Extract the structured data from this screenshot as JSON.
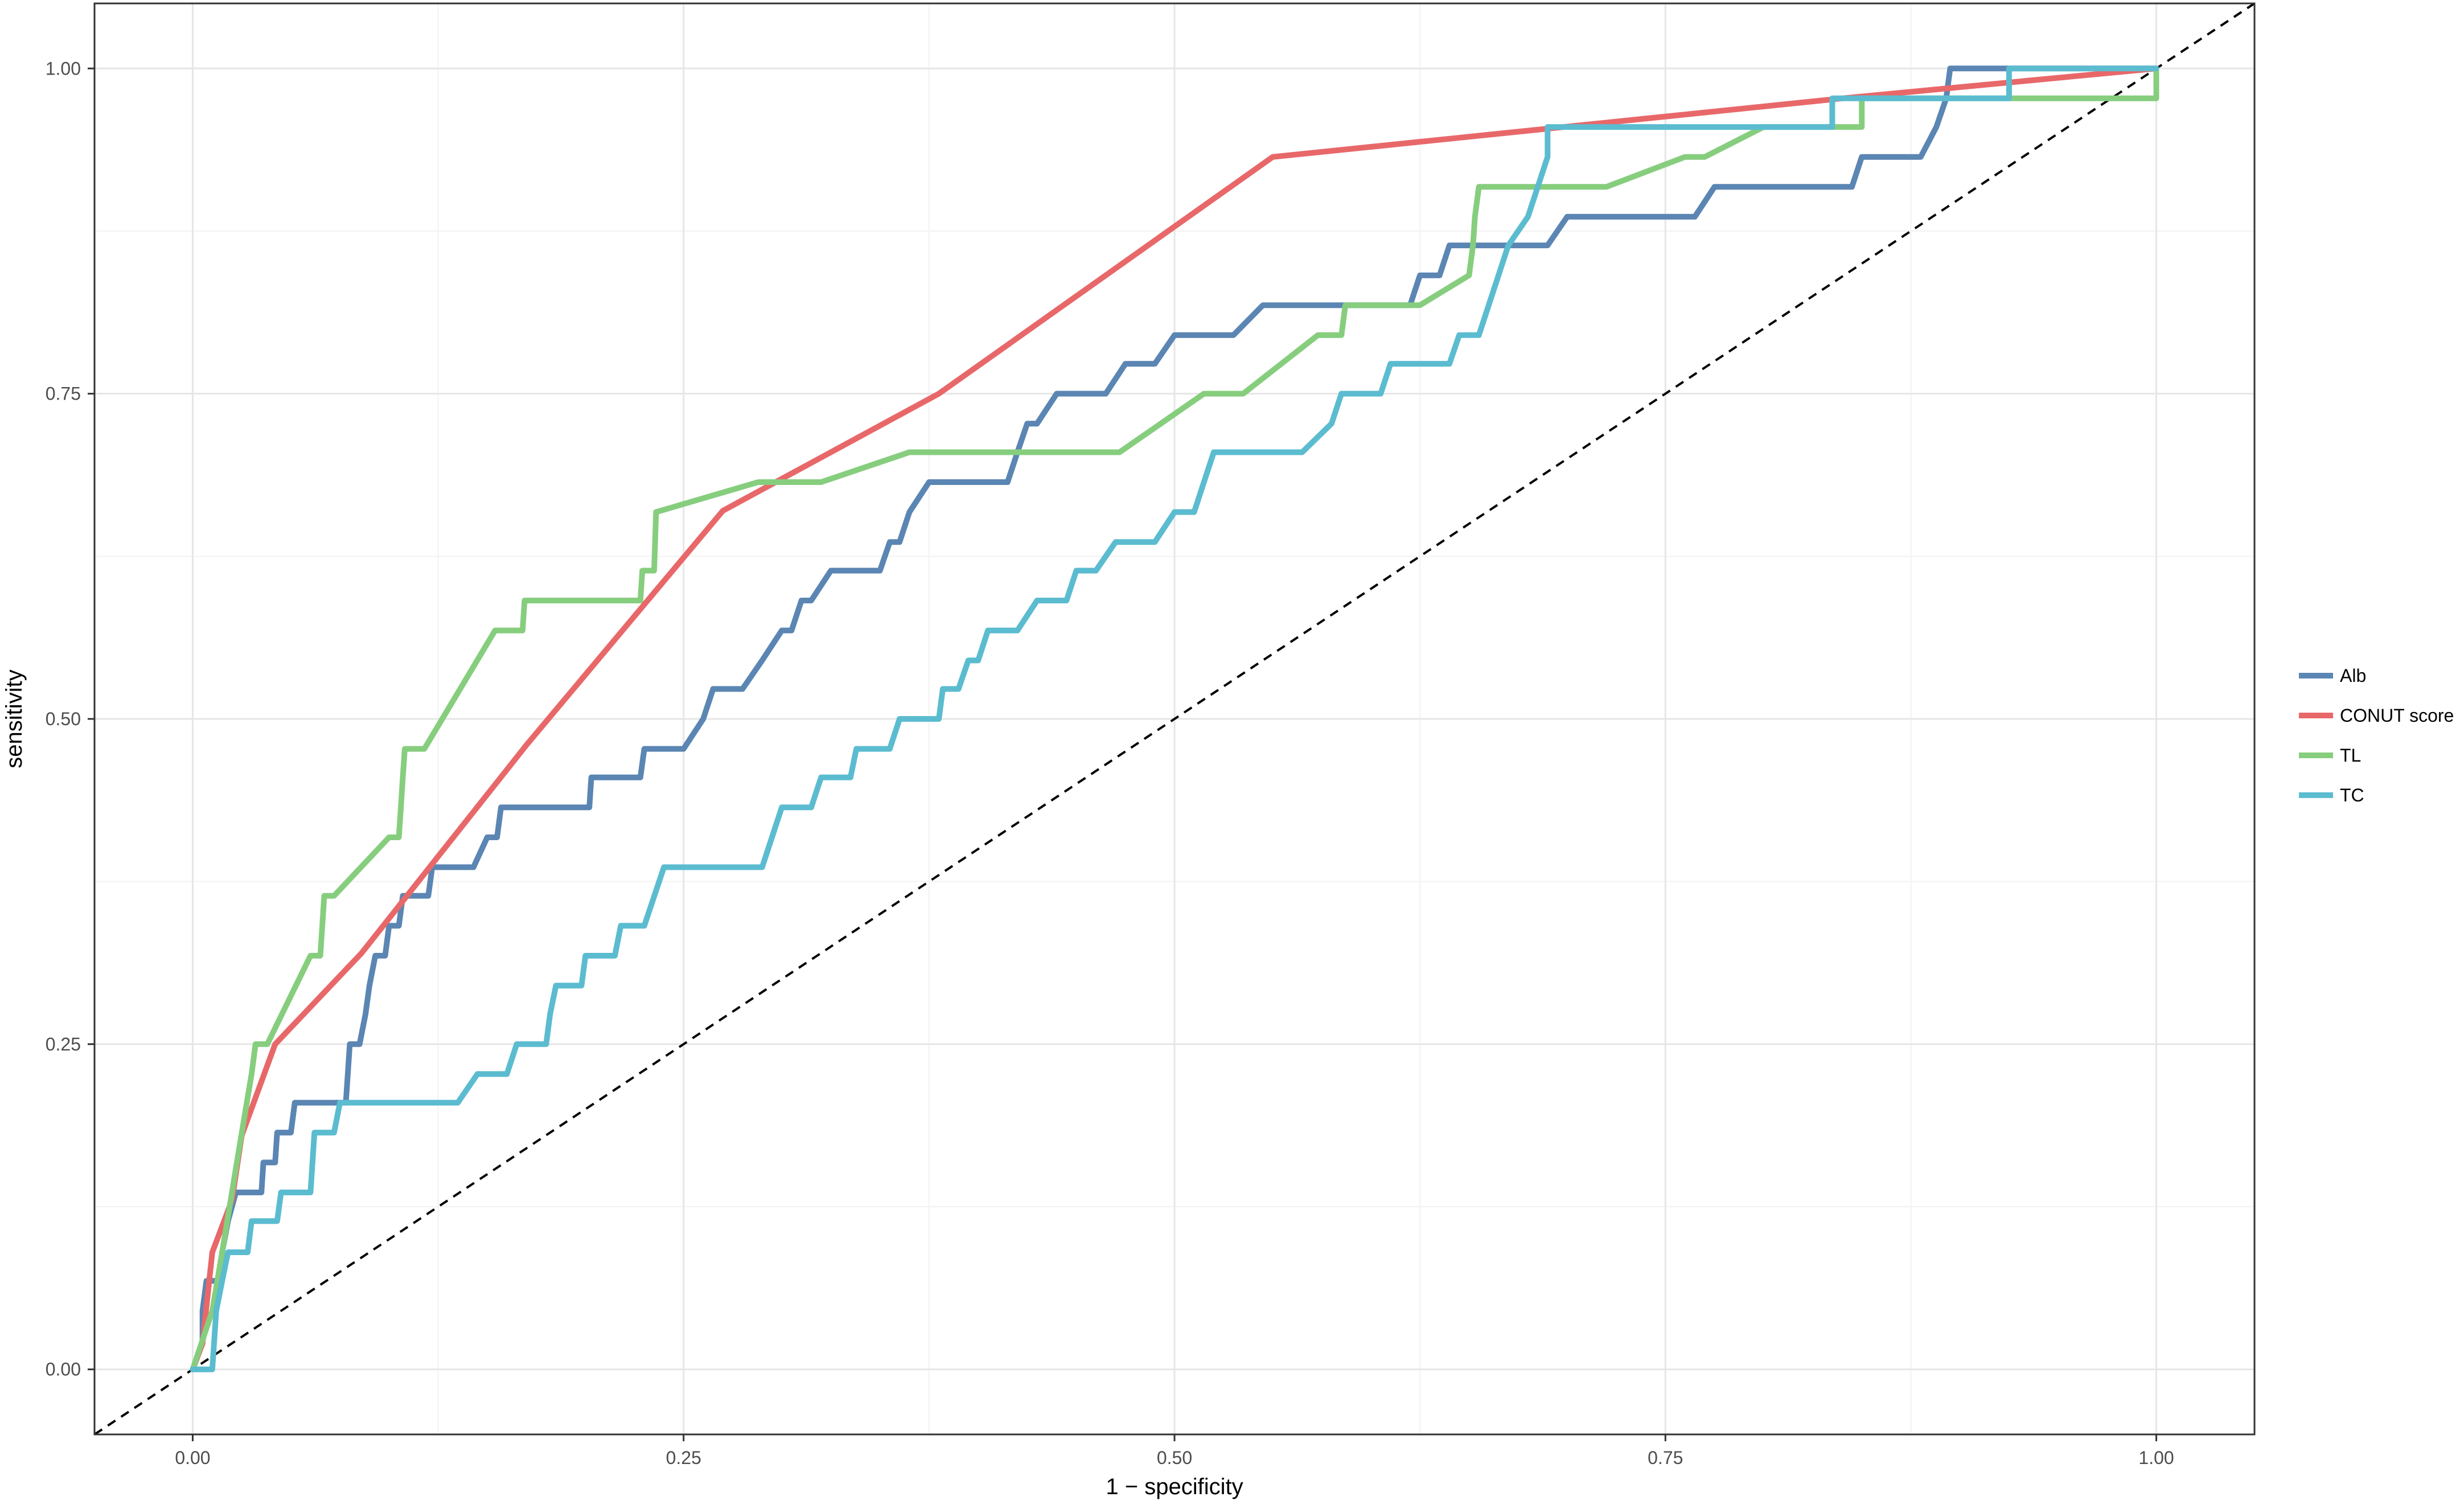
{
  "chart_data": {
    "type": "line",
    "xlabel": "1 − specificity",
    "ylabel": "sensitivity",
    "xlim": [
      -0.05,
      1.05
    ],
    "ylim": [
      -0.05,
      1.05
    ],
    "x_ticks": [
      0,
      0.25,
      0.5,
      0.75,
      1.0
    ],
    "x_tick_labels": [
      "0.00",
      "0.25",
      "0.50",
      "0.75",
      "1.00"
    ],
    "y_ticks": [
      0,
      0.25,
      0.5,
      0.75,
      1.0
    ],
    "y_tick_labels": [
      "0.00",
      "0.25",
      "0.50",
      "0.75",
      "1.00"
    ],
    "grid": true,
    "reference_line": {
      "style": "dashed",
      "from": [
        -0.05,
        -0.05
      ],
      "to": [
        1.05,
        1.05
      ]
    },
    "legend_position": "right",
    "series": [
      {
        "name": "Alb",
        "color": "#5b86b3",
        "points": [
          [
            0,
            0
          ],
          [
            0.005,
            0.02
          ],
          [
            0.005,
            0.045
          ],
          [
            0.007,
            0.068
          ],
          [
            0.015,
            0.068
          ],
          [
            0.015,
            0.09
          ],
          [
            0.018,
            0.114
          ],
          [
            0.022,
            0.136
          ],
          [
            0.035,
            0.136
          ],
          [
            0.036,
            0.159
          ],
          [
            0.042,
            0.159
          ],
          [
            0.043,
            0.182
          ],
          [
            0.05,
            0.182
          ],
          [
            0.052,
            0.205
          ],
          [
            0.078,
            0.205
          ],
          [
            0.079,
            0.227
          ],
          [
            0.08,
            0.25
          ],
          [
            0.085,
            0.25
          ],
          [
            0.088,
            0.273
          ],
          [
            0.09,
            0.295
          ],
          [
            0.093,
            0.318
          ],
          [
            0.098,
            0.318
          ],
          [
            0.1,
            0.341
          ],
          [
            0.105,
            0.341
          ],
          [
            0.107,
            0.364
          ],
          [
            0.12,
            0.364
          ],
          [
            0.122,
            0.386
          ],
          [
            0.143,
            0.386
          ],
          [
            0.15,
            0.409
          ],
          [
            0.155,
            0.409
          ],
          [
            0.157,
            0.432
          ],
          [
            0.202,
            0.432
          ],
          [
            0.203,
            0.455
          ],
          [
            0.228,
            0.455
          ],
          [
            0.23,
            0.477
          ],
          [
            0.25,
            0.477
          ],
          [
            0.26,
            0.5
          ],
          [
            0.265,
            0.523
          ],
          [
            0.28,
            0.523
          ],
          [
            0.29,
            0.545
          ],
          [
            0.3,
            0.568
          ],
          [
            0.305,
            0.568
          ],
          [
            0.31,
            0.591
          ],
          [
            0.315,
            0.591
          ],
          [
            0.325,
            0.614
          ],
          [
            0.35,
            0.614
          ],
          [
            0.355,
            0.636
          ],
          [
            0.36,
            0.636
          ],
          [
            0.365,
            0.659
          ],
          [
            0.375,
            0.682
          ],
          [
            0.415,
            0.682
          ],
          [
            0.42,
            0.705
          ],
          [
            0.425,
            0.727
          ],
          [
            0.43,
            0.727
          ],
          [
            0.44,
            0.75
          ],
          [
            0.465,
            0.75
          ],
          [
            0.475,
            0.773
          ],
          [
            0.49,
            0.773
          ],
          [
            0.5,
            0.795
          ],
          [
            0.53,
            0.795
          ],
          [
            0.545,
            0.818
          ],
          [
            0.62,
            0.818
          ],
          [
            0.625,
            0.841
          ],
          [
            0.635,
            0.841
          ],
          [
            0.64,
            0.864
          ],
          [
            0.69,
            0.864
          ],
          [
            0.7,
            0.886
          ],
          [
            0.765,
            0.886
          ],
          [
            0.775,
            0.909
          ],
          [
            0.845,
            0.909
          ],
          [
            0.85,
            0.932
          ],
          [
            0.88,
            0.932
          ],
          [
            0.888,
            0.955
          ],
          [
            0.893,
            0.977
          ],
          [
            0.895,
            1.0
          ],
          [
            1.0,
            1.0
          ]
        ]
      },
      {
        "name": "CONUT score",
        "color": "#e8686a",
        "points": [
          [
            0,
            0
          ],
          [
            0.005,
            0.02
          ],
          [
            0.01,
            0.09
          ],
          [
            0.02,
            0.13
          ],
          [
            0.025,
            0.18
          ],
          [
            0.042,
            0.25
          ],
          [
            0.086,
            0.32
          ],
          [
            0.17,
            0.48
          ],
          [
            0.27,
            0.66
          ],
          [
            0.38,
            0.75
          ],
          [
            0.55,
            0.932
          ],
          [
            0.84,
            0.977
          ],
          [
            1.0,
            1.0
          ]
        ]
      },
      {
        "name": "TL",
        "color": "#86ce7e",
        "points": [
          [
            0,
            0
          ],
          [
            0.01,
            0.045
          ],
          [
            0.015,
            0.09
          ],
          [
            0.02,
            0.136
          ],
          [
            0.025,
            0.182
          ],
          [
            0.03,
            0.227
          ],
          [
            0.032,
            0.25
          ],
          [
            0.038,
            0.25
          ],
          [
            0.06,
            0.318
          ],
          [
            0.065,
            0.318
          ],
          [
            0.066,
            0.341
          ],
          [
            0.067,
            0.364
          ],
          [
            0.072,
            0.364
          ],
          [
            0.1,
            0.409
          ],
          [
            0.105,
            0.409
          ],
          [
            0.106,
            0.432
          ],
          [
            0.107,
            0.455
          ],
          [
            0.108,
            0.477
          ],
          [
            0.118,
            0.477
          ],
          [
            0.154,
            0.568
          ],
          [
            0.168,
            0.568
          ],
          [
            0.169,
            0.591
          ],
          [
            0.228,
            0.591
          ],
          [
            0.229,
            0.614
          ],
          [
            0.235,
            0.614
          ],
          [
            0.236,
            0.659
          ],
          [
            0.288,
            0.682
          ],
          [
            0.32,
            0.682
          ],
          [
            0.365,
            0.705
          ],
          [
            0.472,
            0.705
          ],
          [
            0.515,
            0.75
          ],
          [
            0.535,
            0.75
          ],
          [
            0.573,
            0.795
          ],
          [
            0.585,
            0.795
          ],
          [
            0.587,
            0.818
          ],
          [
            0.625,
            0.818
          ],
          [
            0.65,
            0.841
          ],
          [
            0.652,
            0.864
          ],
          [
            0.653,
            0.886
          ],
          [
            0.655,
            0.909
          ],
          [
            0.72,
            0.909
          ],
          [
            0.76,
            0.932
          ],
          [
            0.77,
            0.932
          ],
          [
            0.8,
            0.955
          ],
          [
            0.85,
            0.955
          ],
          [
            0.85,
            0.977
          ],
          [
            1.0,
            0.977
          ],
          [
            1.0,
            1.0
          ]
        ]
      },
      {
        "name": "TC",
        "color": "#5bbcd0",
        "points": [
          [
            0,
            0
          ],
          [
            0.01,
            0
          ],
          [
            0.012,
            0.045
          ],
          [
            0.015,
            0.068
          ],
          [
            0.018,
            0.09
          ],
          [
            0.028,
            0.09
          ],
          [
            0.03,
            0.114
          ],
          [
            0.043,
            0.114
          ],
          [
            0.045,
            0.136
          ],
          [
            0.06,
            0.136
          ],
          [
            0.062,
            0.182
          ],
          [
            0.072,
            0.182
          ],
          [
            0.075,
            0.205
          ],
          [
            0.135,
            0.205
          ],
          [
            0.145,
            0.227
          ],
          [
            0.16,
            0.227
          ],
          [
            0.165,
            0.25
          ],
          [
            0.18,
            0.25
          ],
          [
            0.182,
            0.273
          ],
          [
            0.185,
            0.295
          ],
          [
            0.198,
            0.295
          ],
          [
            0.2,
            0.318
          ],
          [
            0.215,
            0.318
          ],
          [
            0.218,
            0.341
          ],
          [
            0.23,
            0.341
          ],
          [
            0.24,
            0.386
          ],
          [
            0.29,
            0.386
          ],
          [
            0.3,
            0.432
          ],
          [
            0.315,
            0.432
          ],
          [
            0.32,
            0.455
          ],
          [
            0.335,
            0.455
          ],
          [
            0.338,
            0.477
          ],
          [
            0.355,
            0.477
          ],
          [
            0.36,
            0.5
          ],
          [
            0.38,
            0.5
          ],
          [
            0.382,
            0.523
          ],
          [
            0.39,
            0.523
          ],
          [
            0.395,
            0.545
          ],
          [
            0.4,
            0.545
          ],
          [
            0.405,
            0.568
          ],
          [
            0.42,
            0.568
          ],
          [
            0.43,
            0.591
          ],
          [
            0.445,
            0.591
          ],
          [
            0.45,
            0.614
          ],
          [
            0.46,
            0.614
          ],
          [
            0.47,
            0.636
          ],
          [
            0.49,
            0.636
          ],
          [
            0.5,
            0.659
          ],
          [
            0.51,
            0.659
          ],
          [
            0.515,
            0.682
          ],
          [
            0.52,
            0.705
          ],
          [
            0.565,
            0.705
          ],
          [
            0.58,
            0.727
          ],
          [
            0.585,
            0.75
          ],
          [
            0.605,
            0.75
          ],
          [
            0.61,
            0.773
          ],
          [
            0.64,
            0.773
          ],
          [
            0.645,
            0.795
          ],
          [
            0.655,
            0.795
          ],
          [
            0.66,
            0.818
          ],
          [
            0.665,
            0.841
          ],
          [
            0.67,
            0.864
          ],
          [
            0.68,
            0.886
          ],
          [
            0.685,
            0.909
          ],
          [
            0.69,
            0.932
          ],
          [
            0.69,
            0.955
          ],
          [
            0.835,
            0.955
          ],
          [
            0.835,
            0.977
          ],
          [
            0.925,
            0.977
          ],
          [
            0.925,
            1.0
          ],
          [
            1.0,
            1.0
          ]
        ]
      }
    ]
  }
}
